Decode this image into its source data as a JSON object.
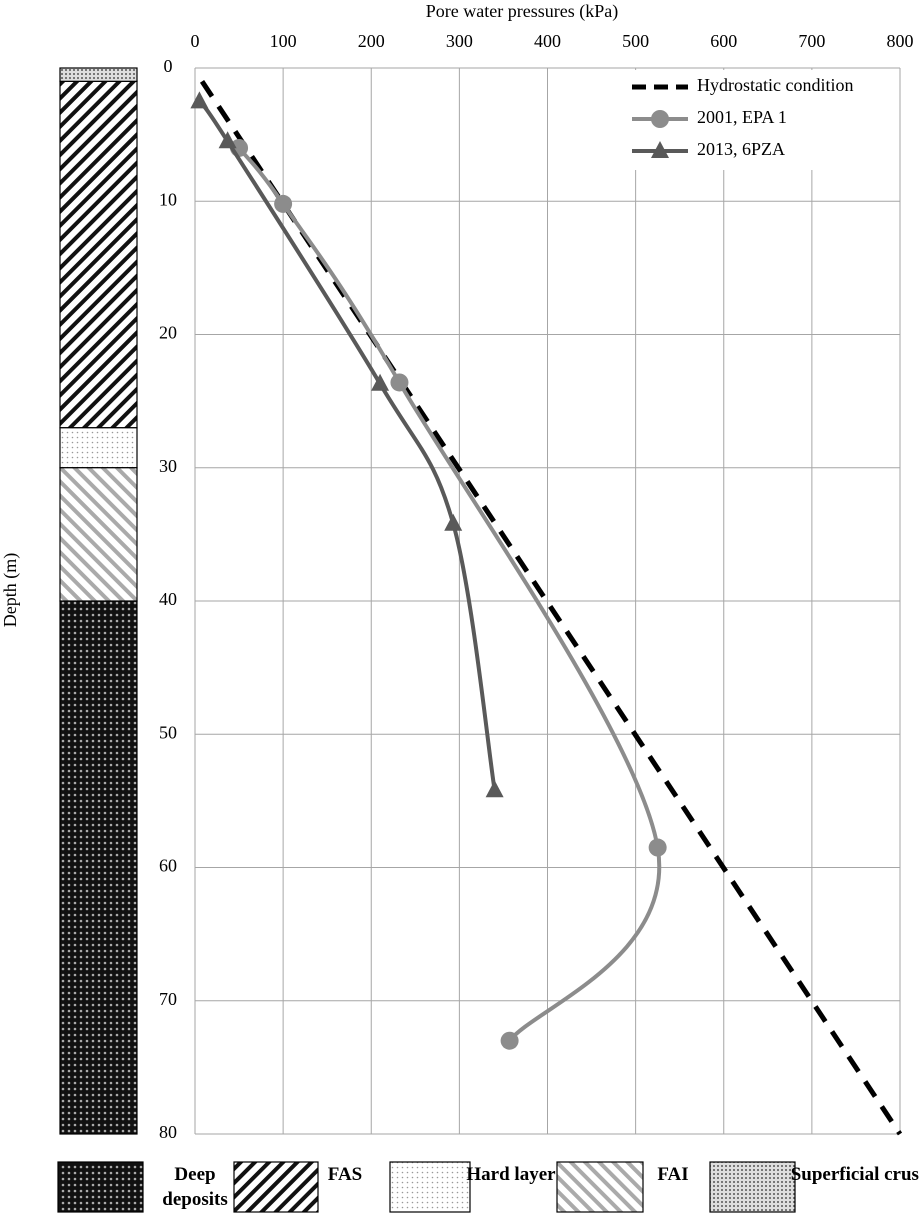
{
  "chart_data": {
    "type": "line",
    "xlabel": "Pore water pressures (kPa)",
    "ylabel": "Depth (m)",
    "xlim": [
      0,
      800
    ],
    "xticks": [
      0,
      100,
      200,
      300,
      400,
      500,
      600,
      700,
      800
    ],
    "ylim": [
      0,
      80
    ],
    "yticks": [
      0,
      10,
      20,
      30,
      40,
      50,
      60,
      70,
      80
    ],
    "y_inverted": true,
    "grid": true,
    "legend": "upper right",
    "series": [
      {
        "name": "Hydrostatic condition",
        "color": "#000000",
        "style": "dashed",
        "marker": "none",
        "x": [
          8,
          800
        ],
        "y": [
          1,
          80
        ]
      },
      {
        "name": "2001, EPA 1",
        "color": "#8c8c8c",
        "style": "smooth",
        "marker": "circle",
        "x": [
          50,
          100,
          232,
          525,
          357
        ],
        "y": [
          6,
          10.2,
          23.6,
          58.5,
          73
        ]
      },
      {
        "name": "2013, 6PZA",
        "color": "#595959",
        "style": "smooth",
        "marker": "triangle",
        "x": [
          5,
          37,
          210,
          293,
          340
        ],
        "y": [
          2.5,
          5.5,
          23.7,
          34.2,
          54.2
        ]
      }
    ],
    "soil_column": {
      "layers": [
        {
          "name": "Deep deposits",
          "pattern": "deep",
          "top": 40,
          "bottom": 80
        },
        {
          "name": "FAS",
          "pattern": "fas",
          "top": 1,
          "bottom": 27
        },
        {
          "name": "Hard layer",
          "pattern": "hard",
          "top": 27,
          "bottom": 30
        },
        {
          "name": "FAI",
          "pattern": "fai",
          "top": 30,
          "bottom": 40
        },
        {
          "name": "Superficial crust",
          "pattern": "crust",
          "top": 0,
          "bottom": 1
        }
      ]
    }
  }
}
